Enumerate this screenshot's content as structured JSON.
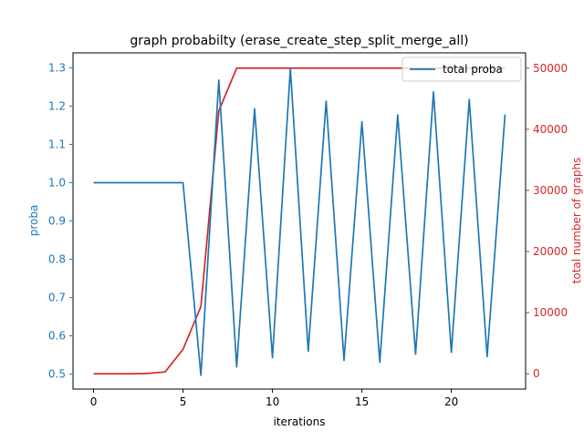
{
  "chart_data": {
    "type": "line",
    "title": "graph probabilty (erase_create_step_split_merge_all)",
    "xlabel": "iterations",
    "ylabel": "proba",
    "y2label": "total number of graphs",
    "xlim": [
      -1.15,
      24.15
    ],
    "ylim": [
      0.461,
      1.339
    ],
    "y2lim": [
      -2500,
      52500
    ],
    "x_ticks": [
      0,
      5,
      10,
      15,
      20
    ],
    "y_ticks": [
      0.5,
      0.6,
      0.7,
      0.8,
      0.9,
      1.0,
      1.1,
      1.2,
      1.3
    ],
    "y2_ticks": [
      0,
      10000,
      20000,
      30000,
      40000,
      50000
    ],
    "grid": false,
    "legend_position": "top-right",
    "x": [
      0,
      1,
      2,
      3,
      4,
      5,
      6,
      7,
      8,
      9,
      10,
      11,
      12,
      13,
      14,
      15,
      16,
      17,
      18,
      19,
      20,
      21,
      22,
      23
    ],
    "series": [
      {
        "name": "total proba",
        "axis": "left",
        "color": "#1f77b4",
        "values": [
          1.0,
          1.0,
          1.0,
          1.0,
          1.0,
          1.0,
          0.497,
          1.268,
          0.519,
          1.193,
          0.543,
          1.298,
          0.56,
          1.213,
          0.536,
          1.159,
          0.531,
          1.177,
          0.552,
          1.237,
          0.557,
          1.217,
          0.546,
          1.178
        ]
      },
      {
        "axis": "right",
        "color": "#d62728",
        "values": [
          0,
          0,
          0,
          50,
          300,
          4000,
          11000,
          43000,
          50000,
          50000,
          50000,
          50000,
          50000,
          50000,
          50000,
          50000,
          50000,
          50000,
          50000,
          50000,
          50000,
          50000,
          50000,
          50000
        ]
      }
    ]
  }
}
